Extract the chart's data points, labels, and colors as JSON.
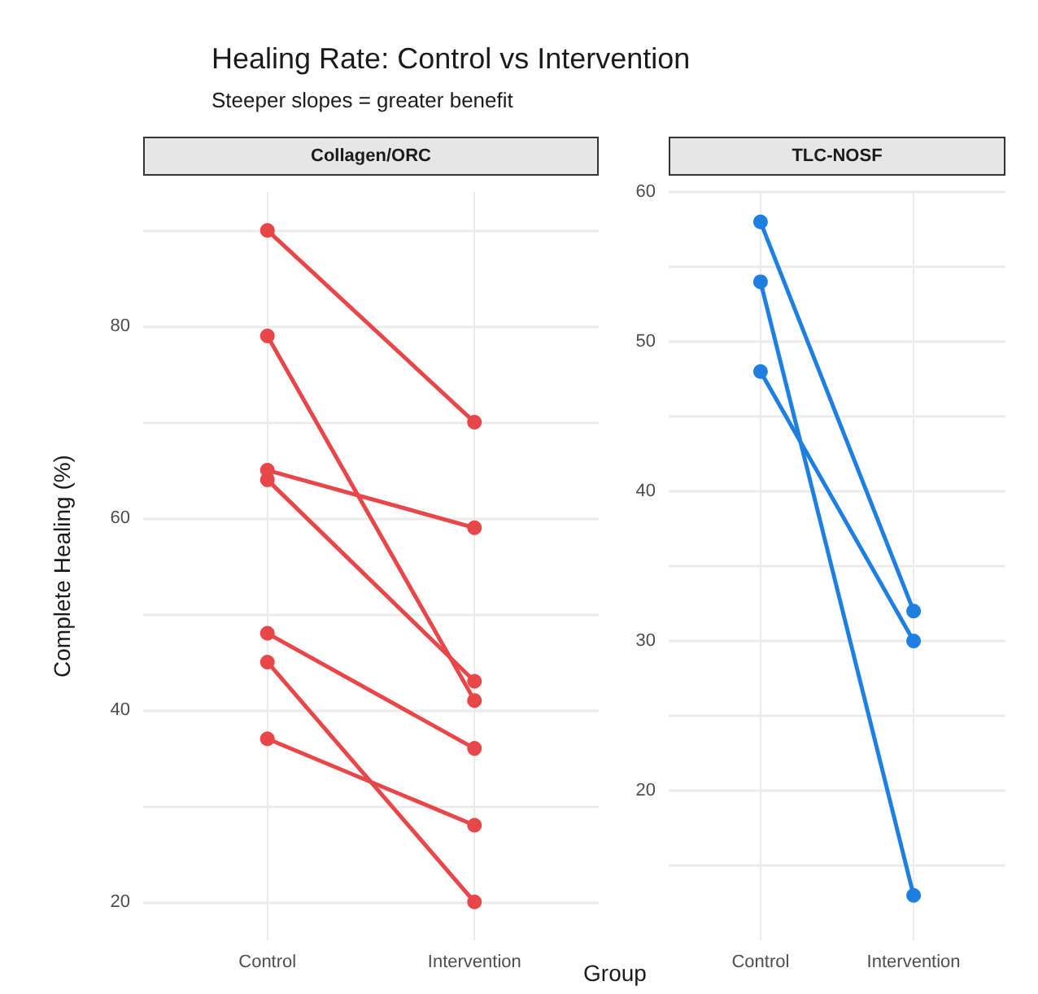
{
  "chart_data": [
    {
      "type": "line",
      "title": "Collagen/ORC",
      "annotations": [
        "Healing Rate: Control vs Intervention",
        "Steeper slopes = greater benefit"
      ],
      "xlabel": "Group",
      "ylabel": "Complete Healing (%)",
      "categories": [
        "Control",
        "Intervention"
      ],
      "series": [
        {
          "color": "#e8474a",
          "values": [
            90,
            70
          ]
        },
        {
          "color": "#e8474a",
          "values": [
            79,
            41
          ]
        },
        {
          "color": "#e8474a",
          "values": [
            65,
            59
          ]
        },
        {
          "color": "#e8474a",
          "values": [
            64,
            43
          ]
        },
        {
          "color": "#e8474a",
          "values": [
            48,
            36
          ]
        },
        {
          "color": "#e8474a",
          "values": [
            45,
            20
          ]
        },
        {
          "color": "#e8474a",
          "values": [
            37,
            28
          ]
        }
      ],
      "ylim": [
        16,
        94
      ],
      "yticks": [
        20,
        {
          "value": 30,
          "label": null
        },
        40,
        {
          "value": 50,
          "label": null
        },
        60,
        {
          "value": 70,
          "label": null
        },
        80,
        {
          "value": 90,
          "label": null
        }
      ],
      "grid": true,
      "marker": "circle",
      "line_style": "solid"
    },
    {
      "type": "line",
      "title": "TLC-NOSF",
      "categories": [
        "Control",
        "Intervention"
      ],
      "series": [
        {
          "color": "#1f7fe0",
          "values": [
            58,
            32
          ]
        },
        {
          "color": "#1f7fe0",
          "values": [
            54,
            13
          ]
        },
        {
          "color": "#1f7fe0",
          "values": [
            48,
            30
          ]
        }
      ],
      "ylim": [
        10,
        60
      ],
      "yticks": [
        {
          "value": 15,
          "label": null
        },
        20,
        {
          "value": 25,
          "label": null
        },
        30,
        {
          "value": 35,
          "label": null
        },
        40,
        {
          "value": 45,
          "label": null
        },
        50,
        {
          "value": 55,
          "label": null
        },
        60
      ],
      "grid": true,
      "marker": "circle",
      "line_style": "solid"
    }
  ]
}
